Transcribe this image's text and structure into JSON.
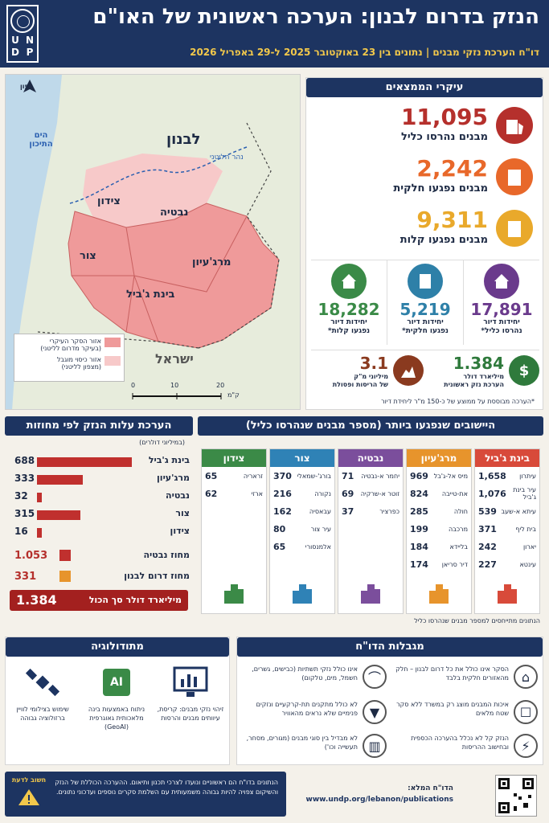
{
  "header": {
    "logo_letters": [
      "U",
      "N",
      "D",
      "P"
    ],
    "title": "הנזק בדרום לבנון: הערכה ראשונית של האו\"ם",
    "subtitle": "דו\"ח הערכת נזקי מבנים  |  נתונים בין 23 באוקטובר 2025 ל-29 באפריל 2026"
  },
  "map": {
    "north_label": "צפון",
    "sea_label": "הים התיכון",
    "lebanon_label": "לבנון",
    "river_label": "נהר הליטני",
    "israel_label": "ישראל",
    "districts": [
      "צידון",
      "נבטיה",
      "צור",
      "מרג'עיון",
      "בינת ג'ביל"
    ],
    "legend": [
      {
        "label": "אזור הסקר העיקרי",
        "sublabel": "(בעיקר מדרום לליטני)",
        "color": "#ef9a9a"
      },
      {
        "label": "אזור כיסוי מוגבל",
        "sublabel": "(מצפון לליטני)",
        "color": "#f7c9c9"
      }
    ],
    "scale_ticks": [
      "0",
      "10",
      "20"
    ],
    "scale_unit": "ק\"מ"
  },
  "key_findings": {
    "title": "עיקרי הממצאים",
    "buildings": [
      {
        "value": "11,095",
        "label": "מבנים נהרסו כליל",
        "color": "#b5302c"
      },
      {
        "value": "2,242",
        "label": "מבנים נפגעו חלקית",
        "color": "#e8682a"
      },
      {
        "value": "9,311",
        "label": "מבנים נפגעו קלות",
        "color": "#e9a92b"
      }
    ],
    "units": [
      {
        "value": "17,891",
        "line1": "יחידות דיור",
        "line2": "נהרסו כליל*",
        "color": "#6a3a8c"
      },
      {
        "value": "5,219",
        "line1": "יחידות דיור",
        "line2": "נפגעו חלקית*",
        "color": "#2e80a8"
      },
      {
        "value": "18,282",
        "line1": "יחידות דיור",
        "line2": "נפגעו קלות*",
        "color": "#3a8a47"
      }
    ],
    "rubble": {
      "value": "3.1",
      "line1": "מיליוני מ\"ק",
      "line2": "של הריסות ופסולת",
      "color": "#8a3a1f"
    },
    "cost": {
      "value": "1.384",
      "line1": "מיליארד דולר",
      "line2": "הערכת נזק ראשונית",
      "color": "#2f7a3c"
    },
    "footnote": "*הערכה מבוססת על ממוצע של כ-150 מ\"ר ליחידת דיור"
  },
  "costs": {
    "title": "הערכת עלות הנזק לפי מחוזות",
    "unit_note": "(במיליוני דולרים)",
    "rows": [
      {
        "label": "בינת ג'ביל",
        "value": 688
      },
      {
        "label": "מרג'עיון",
        "value": 333
      },
      {
        "label": "נבטיה",
        "value": 32
      },
      {
        "label": "צור",
        "value": 315
      },
      {
        "label": "צידון",
        "value": 16
      }
    ],
    "totals": [
      {
        "label": "מחוז נבטיה",
        "value": "1.053"
      },
      {
        "label": "מחוז דרום לבנון",
        "value": "331"
      }
    ],
    "grand_total_value": "1.384",
    "grand_total_label": "מיליארד דולר סך הכול"
  },
  "settlements": {
    "title": "היישובים שנפגעו ביותר (מספר מבנים שנהרסו כליל)",
    "columns": [
      {
        "name": "בינת ג'ביל",
        "color": "#d84a3a",
        "rows": [
          [
            "עיתרון",
            "1,658"
          ],
          [
            "עיר בינת ג'ביל",
            "1,076"
          ],
          [
            "עיתא א-שעב",
            "539"
          ],
          [
            "בית ליף",
            "371"
          ],
          [
            "יארון",
            "242"
          ],
          [
            "עינטא",
            "227"
          ]
        ]
      },
      {
        "name": "מרג'עיון",
        "color": "#e7942c",
        "rows": [
          [
            "מיס אל-ג'בל",
            "969"
          ],
          [
            "את-טייבה",
            "824"
          ],
          [
            "חולה",
            "285"
          ],
          [
            "מרכבה",
            "199"
          ],
          [
            "בליידא",
            "184"
          ],
          [
            "דיר סריאן",
            "174"
          ]
        ]
      },
      {
        "name": "נבטיה",
        "color": "#7b4e9c",
        "rows": [
          [
            "יחמר א-נבטיה",
            "71"
          ],
          [
            "זוטר א-שרקיה",
            "69"
          ],
          [
            "כפרציר",
            "37"
          ]
        ]
      },
      {
        "name": "צור",
        "color": "#2f82b6",
        "rows": [
          [
            "בורג'-שמאלי",
            "370"
          ],
          [
            "נקורה",
            "216"
          ],
          [
            "עבאסיה",
            "162"
          ],
          [
            "עיר צור",
            "80"
          ],
          [
            "אלמנסורי",
            "65"
          ]
        ]
      },
      {
        "name": "צידון",
        "color": "#3b8a47",
        "rows": [
          [
            "זראריה",
            "65"
          ],
          [
            "ארזי",
            "62"
          ]
        ]
      }
    ],
    "note": "הנתונים מתייחסים למספר מבנים שנהרסו כליל"
  },
  "limitations": {
    "title": "מגבלות הדו\"ח",
    "items": [
      "הסקר אינו כולל את כל דרום לבנון – חלק מהאזורים חלקית בלבד",
      "אינו כולל נזקי תשתיות (כבישים, גשרים, חשמל, מים, טלקום)",
      "איכות המבנים מוצג רק במשרד ללא סקר שטח מלאים",
      "לא כולל מתקנים תת-קרקעיים ונזקים פנימיים שלא נראים מהאוויר",
      "הנזק קל לא נכלל בהערכה הכספית ובחישוב ההריסות",
      "לא מבדיל בין סוגי מבנים (מגורים, מסחר, תעשייה וכו')"
    ]
  },
  "methodology": {
    "title": "מתודולוגיה",
    "items": [
      "זיהוי נזקי מבנים: קריסת, עיוותים מבנים והרסות",
      "ניתוח באמצעות בינה מלאכותית גאוגרפית (GeoAI)",
      "שימוש בצילומי לוויין ברזולוציה גבוהה"
    ],
    "ai_label": "AI"
  },
  "footer": {
    "important_label": "חשוב לדעת",
    "text": "הנתונים בדו\"ח הם ראשוניים ונועדו לצרכי תכנון ותיאום. ההערכה הכוללת של הנזק והשיקום צפויה להיות גבוהה משמעותית עם השלמת סקרים נוספים ועדכוני נתונים.",
    "report_label": "הדו\"ח המלא:",
    "report_url": "www.undp.org/lebanon/publications"
  }
}
